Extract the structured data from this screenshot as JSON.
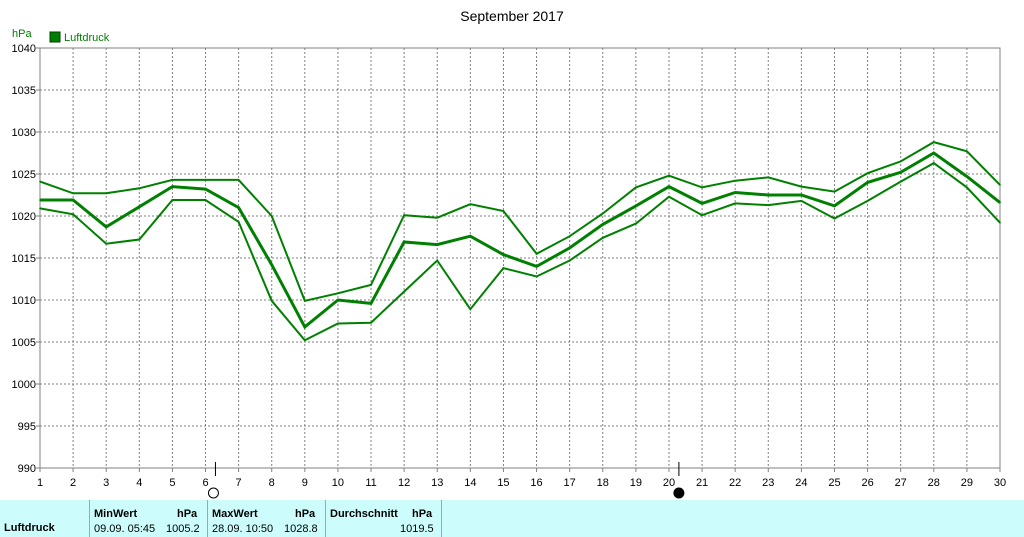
{
  "colors": {
    "line": "#008000",
    "grid": "#808080",
    "axis_text": "#000000",
    "panel_bg": "#ccfcfc"
  },
  "chart_data": {
    "type": "line",
    "title": "September 2017",
    "ylabel": "hPa",
    "ylim": [
      990,
      1040
    ],
    "yticks": [
      990,
      995,
      1000,
      1005,
      1010,
      1015,
      1020,
      1025,
      1030,
      1035,
      1040
    ],
    "x": [
      1,
      2,
      3,
      4,
      5,
      6,
      7,
      8,
      9,
      10,
      11,
      12,
      13,
      14,
      15,
      16,
      17,
      18,
      19,
      20,
      21,
      22,
      23,
      24,
      25,
      26,
      27,
      28,
      29,
      30
    ],
    "grid": true,
    "legend": {
      "label": "Luftdruck",
      "position": "top-left"
    },
    "moon_phases": [
      {
        "day": 6.3,
        "phase": "full-moon"
      },
      {
        "day": 20.3,
        "phase": "new-moon"
      }
    ],
    "series": [
      {
        "role": "max",
        "values": [
          1024.1,
          1022.7,
          1022.7,
          1023.3,
          1024.3,
          1024.3,
          1024.3,
          1020.0,
          1009.9,
          1010.8,
          1011.8,
          1020.1,
          1019.8,
          1021.4,
          1020.6,
          1015.5,
          1017.6,
          1020.3,
          1023.4,
          1024.8,
          1023.4,
          1024.2,
          1024.6,
          1023.5,
          1022.9,
          1025.1,
          1026.5,
          1028.8,
          1027.7,
          1023.7
        ]
      },
      {
        "role": "avg",
        "values": [
          1021.9,
          1021.9,
          1018.7,
          1021.1,
          1023.5,
          1023.2,
          1021.0,
          1014.2,
          1006.8,
          1010.0,
          1009.6,
          1016.9,
          1016.6,
          1017.6,
          1015.4,
          1014.0,
          1016.2,
          1019.0,
          1021.2,
          1023.5,
          1021.5,
          1022.8,
          1022.5,
          1022.5,
          1021.2,
          1024.0,
          1025.2,
          1027.5,
          1024.7,
          1021.6
        ]
      },
      {
        "role": "min",
        "values": [
          1020.9,
          1020.2,
          1016.7,
          1017.2,
          1021.9,
          1021.9,
          1019.3,
          1009.9,
          1005.2,
          1007.2,
          1007.3,
          1011.0,
          1014.7,
          1008.9,
          1013.8,
          1012.8,
          1014.7,
          1017.4,
          1019.1,
          1022.3,
          1020.1,
          1021.5,
          1021.3,
          1021.8,
          1019.7,
          1021.8,
          1024.1,
          1026.3,
          1023.4,
          1019.2
        ]
      }
    ]
  },
  "summary": {
    "row_label": "Luftdruck",
    "min": {
      "header": "MinWert",
      "unit": "hPa",
      "when": "09.09.  05:45",
      "value": "1005.2"
    },
    "max": {
      "header": "MaxWert",
      "unit": "hPa",
      "when": "28.09.  10:50",
      "value": "1028.8"
    },
    "avg": {
      "header": "Durchschnitt",
      "unit": "hPa",
      "value": "1019.5"
    }
  }
}
